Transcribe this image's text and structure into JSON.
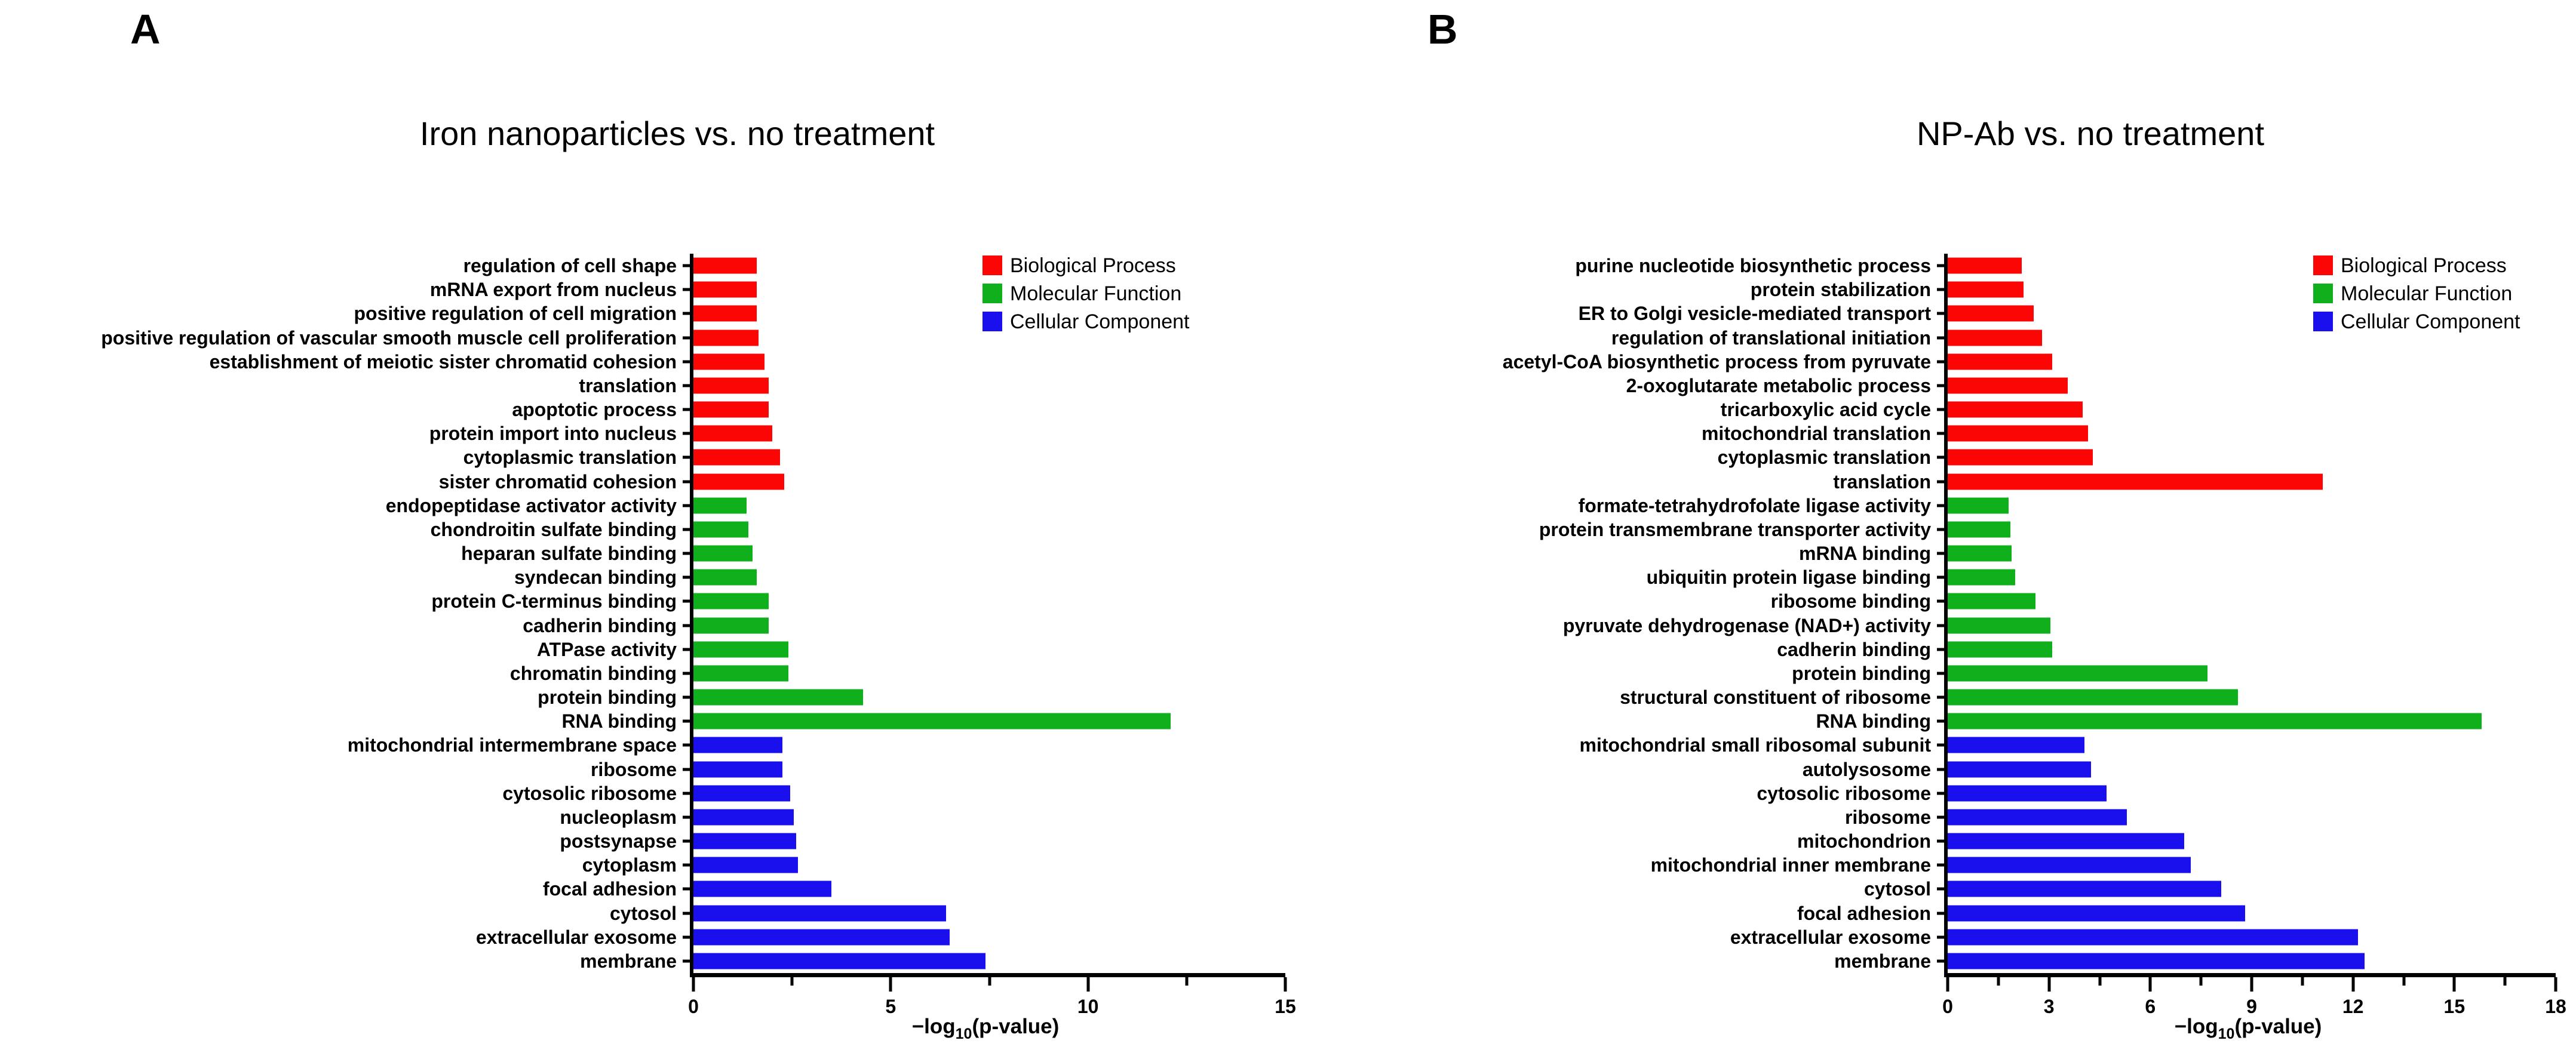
{
  "panels": [
    {
      "panel_label": "A",
      "title": "Iron nanoparticles vs. no treatment"
    },
    {
      "panel_label": "B",
      "title": "NP-Ab vs. no treatment"
    }
  ],
  "xlabel": {
    "prefix": "−log",
    "sub": "10",
    "suffix": "(p-value)",
    "full": "−log10(p-value)"
  },
  "legend": [
    {
      "label": "Biological Process",
      "color": "#fb0505"
    },
    {
      "label": "Molecular Function",
      "color": "#10b01c"
    },
    {
      "label": "Cellular Component",
      "color": "#1a10ee"
    }
  ],
  "chart_data": [
    {
      "type": "bar",
      "orientation": "horizontal",
      "panel": "A",
      "title": "Iron nanoparticles vs. no treatment",
      "xlabel": "−log10(p-value)",
      "x_axis": {
        "min": 0,
        "max": 15,
        "major_ticks": [
          0,
          5,
          10,
          15
        ],
        "minor_ticks": [
          2.5,
          7.5,
          12.5
        ],
        "grid": false
      },
      "legend_position": "top-right",
      "series": [
        {
          "name": "Biological Process",
          "color": "#fb0505",
          "items": [
            {
              "label": "regulation of cell shape",
              "value": 1.6
            },
            {
              "label": "mRNA export from nucleus",
              "value": 1.6
            },
            {
              "label": "positive regulation of cell migration",
              "value": 1.6
            },
            {
              "label": "positive regulation of vascular smooth muscle cell proliferation",
              "value": 1.65
            },
            {
              "label": "establishment of meiotic sister chromatid cohesion",
              "value": 1.8
            },
            {
              "label": "translation",
              "value": 1.9
            },
            {
              "label": "apoptotic process",
              "value": 1.9
            },
            {
              "label": "protein import into nucleus",
              "value": 2.0
            },
            {
              "label": "cytoplasmic translation",
              "value": 2.2
            },
            {
              "label": "sister chromatid cohesion",
              "value": 2.3
            }
          ]
        },
        {
          "name": "Molecular Function",
          "color": "#10b01c",
          "items": [
            {
              "label": "endopeptidase activator activity",
              "value": 1.35
            },
            {
              "label": "chondroitin sulfate binding",
              "value": 1.4
            },
            {
              "label": "heparan sulfate binding",
              "value": 1.5
            },
            {
              "label": "syndecan binding",
              "value": 1.6
            },
            {
              "label": "protein C-terminus binding",
              "value": 1.9
            },
            {
              "label": "cadherin binding",
              "value": 1.9
            },
            {
              "label": "ATPase activity",
              "value": 2.4
            },
            {
              "label": "chromatin binding",
              "value": 2.4
            },
            {
              "label": "protein binding",
              "value": 4.3
            },
            {
              "label": "RNA binding",
              "value": 12.1
            }
          ]
        },
        {
          "name": "Cellular Component",
          "color": "#1a10ee",
          "items": [
            {
              "label": "mitochondrial intermembrane space",
              "value": 2.25
            },
            {
              "label": "ribosome",
              "value": 2.25
            },
            {
              "label": "cytosolic ribosome",
              "value": 2.45
            },
            {
              "label": "nucleoplasm",
              "value": 2.55
            },
            {
              "label": "postsynapse",
              "value": 2.6
            },
            {
              "label": "cytoplasm",
              "value": 2.65
            },
            {
              "label": "focal adhesion",
              "value": 3.5
            },
            {
              "label": "cytosol",
              "value": 6.4
            },
            {
              "label": "extracellular exosome",
              "value": 6.5
            },
            {
              "label": "membrane",
              "value": 7.4
            }
          ]
        }
      ]
    },
    {
      "type": "bar",
      "orientation": "horizontal",
      "panel": "B",
      "title": "NP-Ab vs. no treatment",
      "xlabel": "−log10(p-value)",
      "x_axis": {
        "min": 0,
        "max": 18,
        "major_ticks": [
          0,
          3,
          6,
          9,
          12,
          15,
          18
        ],
        "minor_ticks": [
          1.5,
          4.5,
          7.5,
          10.5,
          13.5,
          16.5
        ],
        "grid": false
      },
      "legend_position": "top-right",
      "series": [
        {
          "name": "Biological Process",
          "color": "#fb0505",
          "items": [
            {
              "label": "purine nucleotide biosynthetic process",
              "value": 2.2
            },
            {
              "label": "protein stabilization",
              "value": 2.25
            },
            {
              "label": "ER to Golgi vesicle-mediated transport",
              "value": 2.55
            },
            {
              "label": "regulation of translational initiation",
              "value": 2.8
            },
            {
              "label": "acetyl-CoA biosynthetic process from pyruvate",
              "value": 3.1
            },
            {
              "label": "2-oxoglutarate metabolic process",
              "value": 3.55
            },
            {
              "label": "tricarboxylic acid cycle",
              "value": 4.0
            },
            {
              "label": "mitochondrial translation",
              "value": 4.15
            },
            {
              "label": "cytoplasmic translation",
              "value": 4.3
            },
            {
              "label": "translation",
              "value": 11.1
            }
          ]
        },
        {
          "name": "Molecular Function",
          "color": "#10b01c",
          "items": [
            {
              "label": "formate-tetrahydrofolate ligase activity",
              "value": 1.8
            },
            {
              "label": "protein transmembrane transporter activity",
              "value": 1.85
            },
            {
              "label": "mRNA binding",
              "value": 1.9
            },
            {
              "label": "ubiquitin protein ligase binding",
              "value": 2.0
            },
            {
              "label": "ribosome binding",
              "value": 2.6
            },
            {
              "label": "pyruvate dehydrogenase (NAD+) activity",
              "value": 3.05
            },
            {
              "label": "cadherin binding",
              "value": 3.1
            },
            {
              "label": "protein binding",
              "value": 7.7
            },
            {
              "label": "structural constituent of ribosome",
              "value": 8.6
            },
            {
              "label": "RNA binding",
              "value": 15.8
            }
          ]
        },
        {
          "name": "Cellular Component",
          "color": "#1a10ee",
          "items": [
            {
              "label": "mitochondrial small ribosomal subunit",
              "value": 4.05
            },
            {
              "label": "autolysosome",
              "value": 4.25
            },
            {
              "label": "cytosolic ribosome",
              "value": 4.7
            },
            {
              "label": "ribosome",
              "value": 5.3
            },
            {
              "label": "mitochondrion",
              "value": 7.0
            },
            {
              "label": "mitochondrial inner membrane",
              "value": 7.2
            },
            {
              "label": "cytosol",
              "value": 8.1
            },
            {
              "label": "focal adhesion",
              "value": 8.8
            },
            {
              "label": "extracellular exosome",
              "value": 12.15
            },
            {
              "label": "membrane",
              "value": 12.35
            }
          ]
        }
      ]
    }
  ]
}
